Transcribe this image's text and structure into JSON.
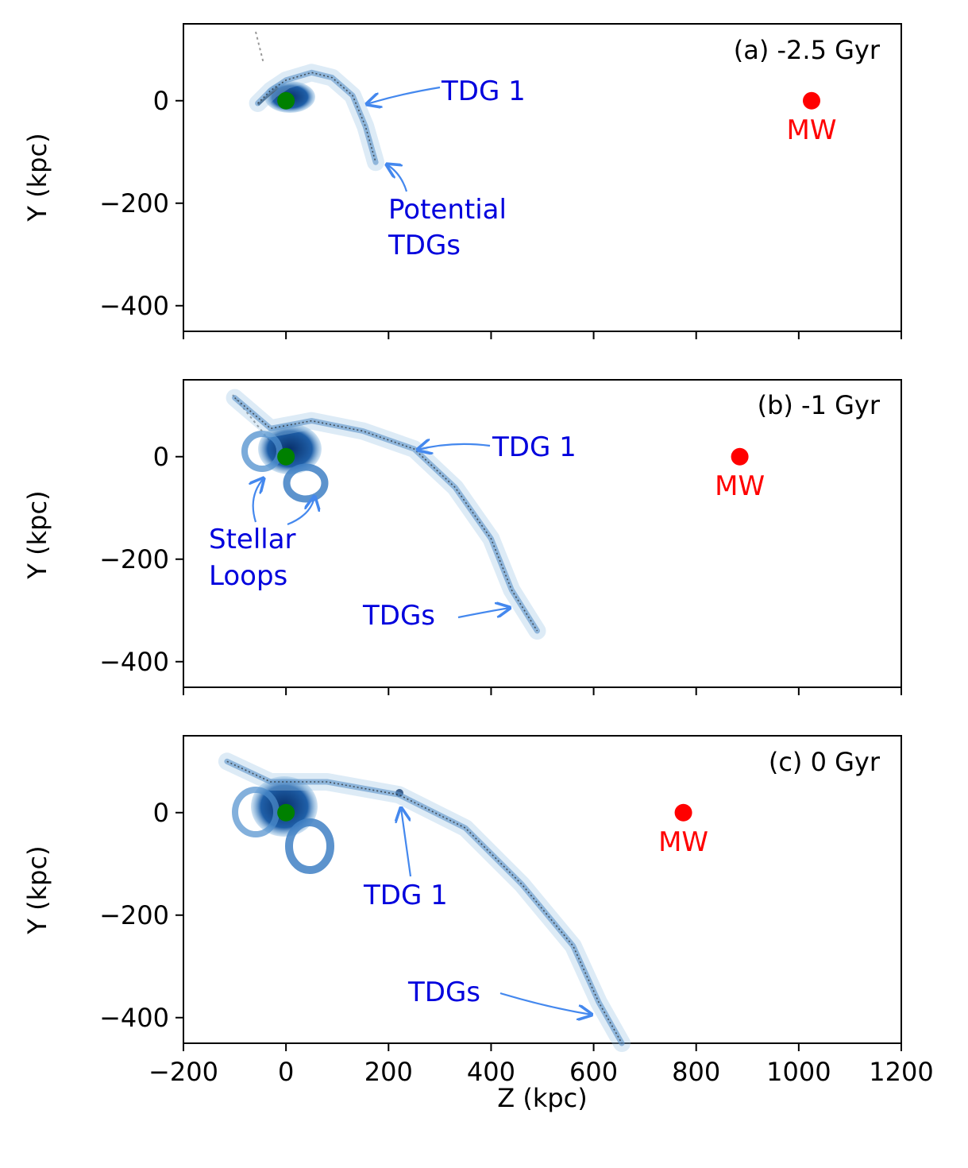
{
  "chart_data": [
    {
      "type": "scatter",
      "panel_label": "(a) -2.5 Gyr",
      "xlabel": "",
      "ylabel": "Y (kpc)",
      "xlim": [
        -200,
        1200
      ],
      "ylim": [
        -450,
        150
      ],
      "xticks": [
        -200,
        0,
        200,
        400,
        600,
        800,
        1000,
        1200
      ],
      "yticks": [
        0,
        -200,
        -400
      ],
      "ytick_labels": [
        "0",
        "−200",
        "−400"
      ],
      "show_xtick_labels": false,
      "markers": [
        {
          "name": "MW",
          "label": "MW",
          "x": 1025,
          "y": 0,
          "color": "#ff0000"
        },
        {
          "name": "host",
          "label": "",
          "x": 0,
          "y": 0,
          "color": "#008000"
        }
      ],
      "stream": [
        [
          -55,
          -5
        ],
        [
          -30,
          20
        ],
        [
          0,
          40
        ],
        [
          50,
          55
        ],
        [
          90,
          45
        ],
        [
          130,
          10
        ],
        [
          155,
          -50
        ],
        [
          175,
          -120
        ]
      ],
      "annotations": [
        {
          "text": "TDG 1",
          "x": 300,
          "y": 20
        },
        {
          "text": "Potential\nTDGs",
          "x": 200,
          "y": -210
        }
      ]
    },
    {
      "type": "scatter",
      "panel_label": "(b) -1 Gyr",
      "xlabel": "",
      "ylabel": "Y (kpc)",
      "xlim": [
        -200,
        1200
      ],
      "ylim": [
        -450,
        150
      ],
      "xticks": [
        -200,
        0,
        200,
        400,
        600,
        800,
        1000,
        1200
      ],
      "yticks": [
        0,
        -200,
        -400
      ],
      "ytick_labels": [
        "0",
        "−200",
        "−400"
      ],
      "show_xtick_labels": false,
      "markers": [
        {
          "name": "MW",
          "label": "MW",
          "x": 885,
          "y": 0,
          "color": "#ff0000"
        },
        {
          "name": "host",
          "label": "",
          "x": 0,
          "y": 0,
          "color": "#008000"
        }
      ],
      "stream": [
        [
          -100,
          115
        ],
        [
          -30,
          55
        ],
        [
          50,
          70
        ],
        [
          150,
          50
        ],
        [
          250,
          15
        ],
        [
          330,
          -60
        ],
        [
          400,
          -160
        ],
        [
          440,
          -260
        ],
        [
          490,
          -340
        ]
      ],
      "annotations": [
        {
          "text": "TDG 1",
          "x": 400,
          "y": 20
        },
        {
          "text": "Stellar\nLoops",
          "x": -150,
          "y": -160
        },
        {
          "text": "TDGs",
          "x": 150,
          "y": -310
        }
      ]
    },
    {
      "type": "scatter",
      "panel_label": "(c) 0 Gyr",
      "xlabel": "Z (kpc)",
      "ylabel": "Y (kpc)",
      "xlim": [
        -200,
        1200
      ],
      "ylim": [
        -450,
        150
      ],
      "xticks": [
        -200,
        0,
        200,
        400,
        600,
        800,
        1000,
        1200
      ],
      "xtick_labels": [
        "−200",
        "0",
        "200",
        "400",
        "600",
        "800",
        "1000",
        "1200"
      ],
      "yticks": [
        0,
        -200,
        -400
      ],
      "ytick_labels": [
        "0",
        "−200",
        "−400"
      ],
      "show_xtick_labels": true,
      "markers": [
        {
          "name": "MW",
          "label": "MW",
          "x": 775,
          "y": 0,
          "color": "#ff0000"
        },
        {
          "name": "host",
          "label": "",
          "x": 0,
          "y": 0,
          "color": "#008000"
        }
      ],
      "stream": [
        [
          -115,
          100
        ],
        [
          -30,
          60
        ],
        [
          80,
          60
        ],
        [
          220,
          35
        ],
        [
          350,
          -30
        ],
        [
          460,
          -140
        ],
        [
          560,
          -260
        ],
        [
          610,
          -370
        ],
        [
          655,
          -450
        ]
      ],
      "annotations": [
        {
          "text": "TDG 1",
          "x": 150,
          "y": -160
        },
        {
          "text": "TDGs",
          "x": 240,
          "y": -345
        }
      ]
    }
  ],
  "colors": {
    "annotation_text": "#0000dd",
    "arrow": "#4488ee",
    "mw": "#ff0000",
    "host": "#008000",
    "stream_dark": "#0d3d7a",
    "stream_light": "#9ec6e6"
  }
}
